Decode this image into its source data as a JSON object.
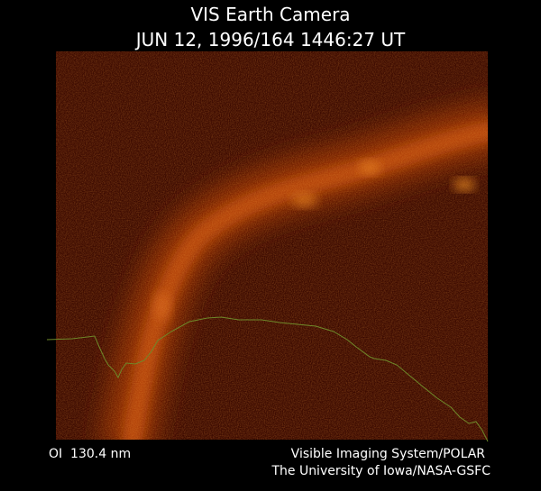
{
  "header": {
    "title": "VIS Earth Camera",
    "timestamp": "JUN 12, 1996/164 1446:27 UT"
  },
  "footer": {
    "filter": "OI  130.4 nm",
    "instrument": "Visible Imaging System/POLAR",
    "institution": "The University of Iowa/NASA-GSFC"
  }
}
